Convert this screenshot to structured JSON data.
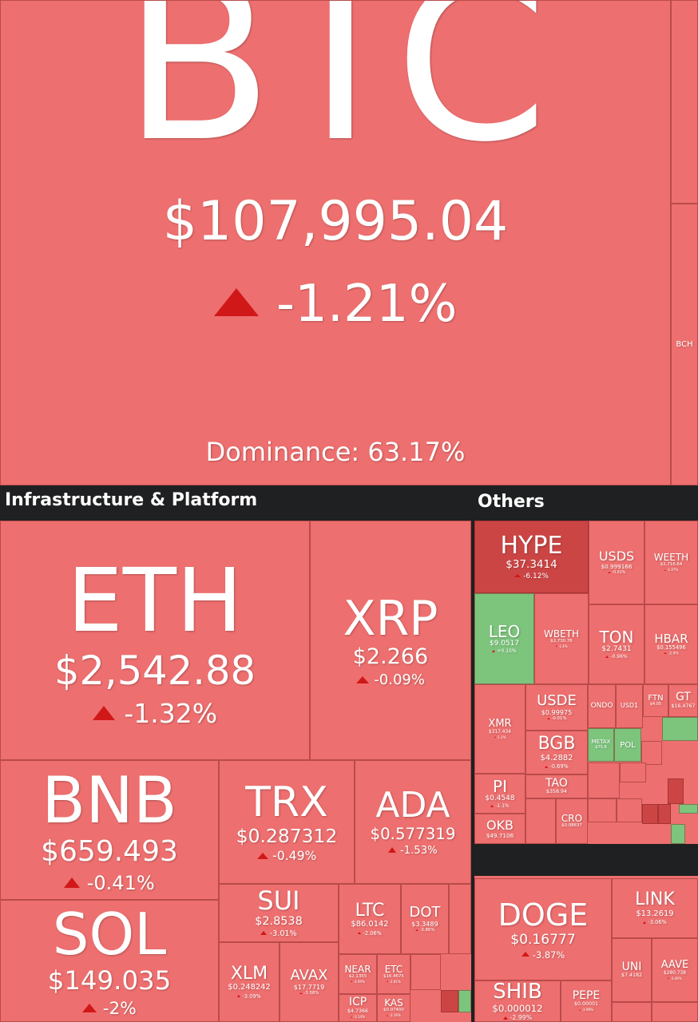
{
  "btc": {
    "symbol": "BTC",
    "price": "$107,995.04",
    "change": "-1.21%",
    "dominance": "Dominance: 63.17%",
    "color": "#ee6f6f"
  },
  "sections": [
    "Infrastructure & Platform",
    "Others"
  ],
  "tiles": [
    {
      "symbol": "ETH",
      "price": "$2,542.88",
      "change": "-1.32%",
      "color": "#ee6f6f"
    },
    {
      "symbol": "XRP",
      "price": "$2.266",
      "change": "-0.09%",
      "color": "#ee6f6f"
    },
    {
      "symbol": "BNB",
      "price": "$659.493",
      "change": "-0.41%",
      "color": "#ee6f6f"
    },
    {
      "symbol": "TRX",
      "price": "$0.287312",
      "change": "-0.49%",
      "color": "#ee6f6f"
    },
    {
      "symbol": "ADA",
      "price": "$0.577319",
      "change": "-1.53%",
      "color": "#ee6f6f"
    },
    {
      "symbol": "SOL",
      "price": "$149.035",
      "change": "-2%",
      "color": "#ee6f6f"
    },
    {
      "symbol": "SUI",
      "price": "$2.8538",
      "change": "-3.01%",
      "color": "#ee6f6f"
    },
    {
      "symbol": "LTC",
      "price": "$86.0142",
      "change": "-2.06%",
      "color": "#ee6f6f"
    },
    {
      "symbol": "DOT",
      "price": "$3.3489",
      "change": "-3.86%",
      "color": "#ee6f6f"
    },
    {
      "symbol": "XLM",
      "price": "$0.248242",
      "change": "-3.09%",
      "color": "#ee6f6f"
    },
    {
      "symbol": "AVAX",
      "price": "$17.7719",
      "change": "-3.58%",
      "color": "#ee6f6f"
    },
    {
      "symbol": "NEAR",
      "price": "$2.1355",
      "change": "-3.09%",
      "color": "#ee6f6f"
    },
    {
      "symbol": "ETC",
      "price": "$16.4675",
      "change": "-2.81%",
      "color": "#ee6f6f"
    },
    {
      "symbol": "ICP",
      "price": "$4.7366",
      "change": "-3.14%",
      "color": "#ee6f6f"
    },
    {
      "symbol": "KAS",
      "price": "$0.07400",
      "change": "-3.16%",
      "color": "#ee6f6f"
    },
    {
      "symbol": "HYPE",
      "price": "$37.3414",
      "change": "-6.12%",
      "color": "#cc4545"
    },
    {
      "symbol": "USDS",
      "price": "$0.999166",
      "change": "-0.01%",
      "color": "#ee6f6f"
    },
    {
      "symbol": "WEETH",
      "price": "$2,716.64",
      "change": "-1.07%",
      "color": "#ee6f6f"
    },
    {
      "symbol": "LEO",
      "price": "$9.0517",
      "change": "+0.15%",
      "color": "#7dc47d"
    },
    {
      "symbol": "WBETH",
      "price": "$2,730.76",
      "change": "-1.4%",
      "color": "#ee6f6f"
    },
    {
      "symbol": "TON",
      "price": "$2.7431",
      "change": "-0.96%",
      "color": "#ee6f6f"
    },
    {
      "symbol": "HBAR",
      "price": "$0.155496",
      "change": "-2.9%",
      "color": "#ee6f6f"
    },
    {
      "symbol": "XMR",
      "price": "$317.434",
      "change": "-1.2%",
      "color": "#ee6f6f"
    },
    {
      "symbol": "USDE",
      "price": "$0.99975",
      "change": "-0.01%",
      "color": "#ee6f6f"
    },
    {
      "symbol": "ONDO",
      "color": "#ee6f6f"
    },
    {
      "symbol": "USD1",
      "color": "#ee6f6f"
    },
    {
      "symbol": "FTN",
      "price": "$4.05",
      "color": "#ee6f6f"
    },
    {
      "symbol": "GT",
      "price": "$16.4767",
      "color": "#ee6f6f"
    },
    {
      "symbol": "BGB",
      "price": "$4.2882",
      "change": "-0.69%",
      "color": "#ee6f6f"
    },
    {
      "symbol": "METAX",
      "price": "$75.8",
      "color": "#7dc47d"
    },
    {
      "symbol": "POL",
      "color": "#7dc47d"
    },
    {
      "symbol": "PI",
      "price": "$0.4548",
      "change": "-1.1%",
      "color": "#ee6f6f"
    },
    {
      "symbol": "TAO",
      "price": "$358.94",
      "color": "#ee6f6f"
    },
    {
      "symbol": "OKB",
      "price": "$49.7106",
      "color": "#ee6f6f"
    },
    {
      "symbol": "CRO",
      "price": "$0.08637",
      "color": "#ee6f6f"
    },
    {
      "symbol": "DOGE",
      "price": "$0.16777",
      "change": "-3.87%",
      "color": "#ee6f6f"
    },
    {
      "symbol": "LINK",
      "price": "$13.2619",
      "change": "-3.06%",
      "color": "#ee6f6f"
    },
    {
      "symbol": "UNI",
      "price": "$7.4182",
      "color": "#ee6f6f"
    },
    {
      "symbol": "AAVE",
      "price": "$280.738",
      "change": "-3.46%",
      "color": "#ee6f6f"
    },
    {
      "symbol": "SHIB",
      "price": "$0.000012",
      "change": "-2.99%",
      "color": "#ee6f6f"
    },
    {
      "symbol": "PEPE",
      "price": "$0.00001",
      "change": "-3.98%",
      "color": "#ee6f6f"
    },
    {
      "symbol": "BCH",
      "color": "#ee6f6f"
    }
  ]
}
